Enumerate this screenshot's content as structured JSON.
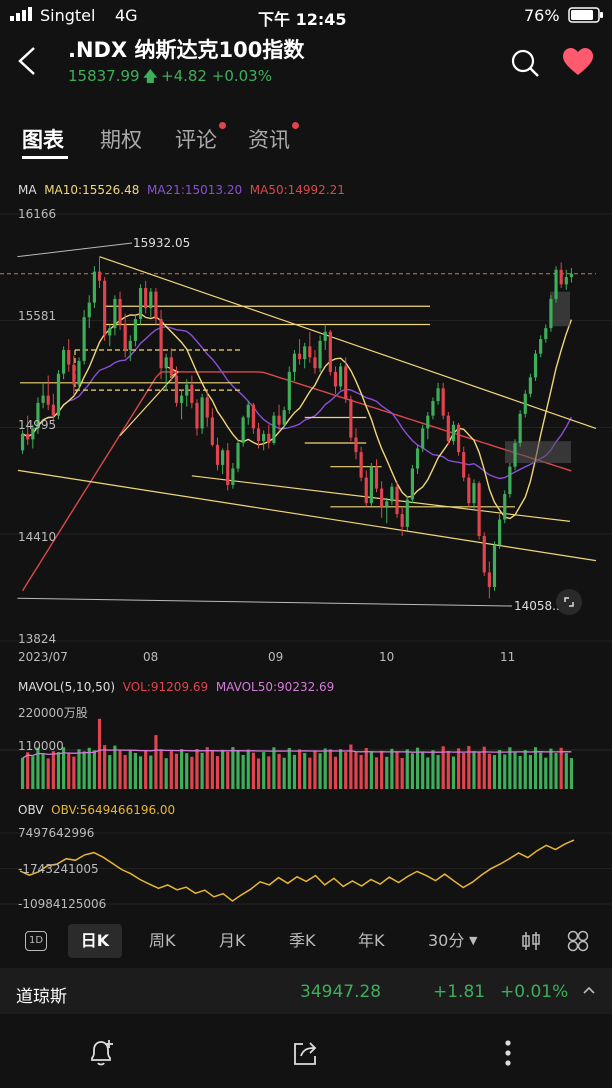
{
  "status": {
    "carrier": "Singtel",
    "network": "4G",
    "time": "下午 12:45",
    "battery": "76%"
  },
  "header": {
    "title": ".NDX 纳斯达克100指数",
    "price": "15837.99",
    "change": "+4.82",
    "change_pct": "+0.03%"
  },
  "tabs": [
    {
      "label": "图表"
    },
    {
      "label": "期权"
    },
    {
      "label": "评论"
    },
    {
      "label": "资讯"
    }
  ],
  "ma_legend": {
    "ma": "MA",
    "ma10": "MA10:15526.48",
    "ma21": "MA21:15013.20",
    "ma50": "MA50:14992.21"
  },
  "price_axis": {
    "y1": "16166",
    "y2": "15581",
    "y3": "14995",
    "y4": "14410",
    "y5": "13824"
  },
  "x_axis": {
    "d1": "2023/07",
    "d2": "08",
    "d3": "09",
    "d4": "10",
    "d5": "11"
  },
  "annotations": {
    "high": "15932.05",
    "low": "14058.33"
  },
  "mavol_legend": {
    "name": "MAVOL(5,10,50)",
    "vol": "VOL:91209.69",
    "mavol50": "MAVOL50:90232.69"
  },
  "vol_axis": {
    "y1": "220000万股",
    "y2": "110000"
  },
  "obv_legend": {
    "name": "OBV",
    "val": "OBV:5649466196.00"
  },
  "obv_axis": {
    "y1": "7497642996",
    "y2": "-1743241005",
    "y3": "-10984125006"
  },
  "timeframes": {
    "d1": "1D",
    "day": "日K",
    "week": "周K",
    "month": "月K",
    "quarter": "季K",
    "year": "年K",
    "min30": "30分"
  },
  "bottom_ticker": {
    "name": "道琼斯",
    "price": "34947.28",
    "change": "+1.81",
    "change_pct": "+0.01%"
  },
  "colors": {
    "up": "#3fae5a",
    "down": "#e0454f",
    "accent": "#f0d77a",
    "ma21": "#8a4fd6",
    "ma50": "#d9484a",
    "obv": "#e8b634",
    "bg": "#121212"
  },
  "chart_data": {
    "type": "candlestick",
    "x_labels": [
      "2023/07",
      "08",
      "09",
      "10",
      "11"
    ],
    "ylim": [
      13824,
      16166
    ],
    "y_ticks": [
      16166,
      15581,
      14995,
      14410,
      13824
    ],
    "annotated_high": 15932.05,
    "annotated_low": 14058.33,
    "last_price": 15837.99,
    "ohlc": [
      [
        14870,
        14980,
        14850,
        14960
      ],
      [
        14960,
        15060,
        14900,
        14930
      ],
      [
        14930,
        15010,
        14880,
        14990
      ],
      [
        14990,
        15160,
        14960,
        15130
      ],
      [
        15130,
        15240,
        15100,
        15170
      ],
      [
        15170,
        15280,
        15090,
        15120
      ],
      [
        15120,
        15180,
        15020,
        15060
      ],
      [
        15060,
        15310,
        15040,
        15290
      ],
      [
        15290,
        15440,
        15260,
        15420
      ],
      [
        15420,
        15480,
        15300,
        15340
      ],
      [
        15340,
        15390,
        15170,
        15230
      ],
      [
        15230,
        15380,
        15200,
        15360
      ],
      [
        15360,
        15640,
        15340,
        15600
      ],
      [
        15600,
        15720,
        15540,
        15680
      ],
      [
        15680,
        15880,
        15650,
        15850
      ],
      [
        15850,
        15932,
        15760,
        15800
      ],
      [
        15800,
        15820,
        15470,
        15500
      ],
      [
        15500,
        15560,
        15440,
        15540
      ],
      [
        15540,
        15720,
        15500,
        15700
      ],
      [
        15700,
        15740,
        15530,
        15560
      ],
      [
        15560,
        15620,
        15380,
        15420
      ],
      [
        15420,
        15500,
        15360,
        15470
      ],
      [
        15470,
        15610,
        15440,
        15590
      ],
      [
        15590,
        15780,
        15560,
        15760
      ],
      [
        15760,
        15800,
        15620,
        15650
      ],
      [
        15650,
        15760,
        15600,
        15740
      ],
      [
        15740,
        15760,
        15560,
        15590
      ],
      [
        15590,
        15640,
        15260,
        15320
      ],
      [
        15320,
        15400,
        15200,
        15380
      ],
      [
        15380,
        15430,
        15250,
        15280
      ],
      [
        15280,
        15330,
        15110,
        15130
      ],
      [
        15130,
        15200,
        15040,
        15170
      ],
      [
        15170,
        15260,
        15110,
        15230
      ],
      [
        15230,
        15280,
        15100,
        15130
      ],
      [
        15130,
        15150,
        14950,
        14990
      ],
      [
        14990,
        15180,
        14960,
        15160
      ],
      [
        15160,
        15200,
        15000,
        15050
      ],
      [
        15050,
        15100,
        14890,
        14900
      ],
      [
        14900,
        14940,
        14760,
        14790
      ],
      [
        14790,
        14880,
        14740,
        14870
      ],
      [
        14870,
        14910,
        14650,
        14680
      ],
      [
        14680,
        14800,
        14660,
        14770
      ],
      [
        14770,
        14930,
        14750,
        14910
      ],
      [
        14910,
        15060,
        14890,
        15050
      ],
      [
        15050,
        15140,
        15010,
        15120
      ],
      [
        15120,
        15130,
        14960,
        14990
      ],
      [
        14990,
        15020,
        14880,
        14920
      ],
      [
        14920,
        14980,
        14870,
        14960
      ],
      [
        14960,
        15010,
        14880,
        14910
      ],
      [
        14910,
        15080,
        14900,
        15060
      ],
      [
        15060,
        15120,
        14980,
        15010
      ],
      [
        15010,
        15110,
        14990,
        15090
      ],
      [
        15090,
        15330,
        15070,
        15300
      ],
      [
        15300,
        15420,
        15250,
        15400
      ],
      [
        15400,
        15480,
        15340,
        15370
      ],
      [
        15370,
        15460,
        15320,
        15440
      ],
      [
        15440,
        15520,
        15350,
        15380
      ],
      [
        15380,
        15420,
        15290,
        15320
      ],
      [
        15320,
        15500,
        15300,
        15470
      ],
      [
        15470,
        15560,
        15420,
        15520
      ],
      [
        15520,
        15530,
        15280,
        15300
      ],
      [
        15300,
        15330,
        15180,
        15220
      ],
      [
        15220,
        15350,
        15200,
        15330
      ],
      [
        15330,
        15380,
        15130,
        15150
      ],
      [
        15150,
        15170,
        14920,
        14940
      ],
      [
        14940,
        14990,
        14820,
        14860
      ],
      [
        14860,
        14890,
        14700,
        14720
      ],
      [
        14720,
        14760,
        14560,
        14580
      ],
      [
        14580,
        14800,
        14560,
        14780
      ],
      [
        14780,
        14820,
        14640,
        14660
      ],
      [
        14660,
        14700,
        14500,
        14560
      ],
      [
        14560,
        14610,
        14470,
        14590
      ],
      [
        14590,
        14690,
        14570,
        14670
      ],
      [
        14670,
        14700,
        14500,
        14520
      ],
      [
        14520,
        14560,
        14400,
        14450
      ],
      [
        14450,
        14620,
        14430,
        14600
      ],
      [
        14600,
        14790,
        14580,
        14770
      ],
      [
        14770,
        14900,
        14740,
        14880
      ],
      [
        14880,
        15010,
        14860,
        14990
      ],
      [
        14990,
        15080,
        14930,
        15060
      ],
      [
        15060,
        15160,
        15040,
        15140
      ],
      [
        15140,
        15240,
        15120,
        15210
      ],
      [
        15210,
        15240,
        15040,
        15060
      ],
      [
        15060,
        15080,
        14900,
        14920
      ],
      [
        14920,
        15030,
        14900,
        15010
      ],
      [
        15010,
        15020,
        14840,
        14860
      ],
      [
        14860,
        14890,
        14700,
        14720
      ],
      [
        14720,
        14740,
        14560,
        14580
      ],
      [
        14580,
        14710,
        14550,
        14690
      ],
      [
        14690,
        14700,
        14380,
        14400
      ],
      [
        14400,
        14420,
        14180,
        14200
      ],
      [
        14200,
        14260,
        14058,
        14120
      ],
      [
        14120,
        14370,
        14100,
        14350
      ],
      [
        14350,
        14520,
        14330,
        14490
      ],
      [
        14490,
        14650,
        14470,
        14630
      ],
      [
        14630,
        14800,
        14610,
        14780
      ],
      [
        14780,
        14930,
        14760,
        14910
      ],
      [
        14910,
        15090,
        14890,
        15070
      ],
      [
        15070,
        15200,
        15050,
        15180
      ],
      [
        15180,
        15290,
        15160,
        15270
      ],
      [
        15270,
        15420,
        15250,
        15400
      ],
      [
        15400,
        15500,
        15380,
        15480
      ],
      [
        15480,
        15560,
        15460,
        15540
      ],
      [
        15540,
        15720,
        15520,
        15700
      ],
      [
        15700,
        15880,
        15680,
        15860
      ],
      [
        15860,
        15900,
        15760,
        15780
      ],
      [
        15780,
        15860,
        15750,
        15820
      ],
      [
        15820,
        15870,
        15790,
        15838
      ]
    ],
    "series": [
      {
        "name": "MA10"
      },
      {
        "name": "MA21"
      },
      {
        "name": "MA50"
      }
    ],
    "volume_ylim": [
      0,
      220000
    ],
    "volume_ticks": [
      220000,
      110000
    ],
    "volume_last": 91209.69,
    "mavol50_last": 90232.69,
    "obv_ticks": [
      7497642996,
      -1743241005,
      -10984125006
    ],
    "obv_last": 5649466196.0,
    "obv_values": [
      -2400000000.0,
      -3500000000.0,
      -2600000000.0,
      -1000000000.0,
      -600000000.0,
      800000000.0,
      400000000.0,
      1800000000.0,
      2400000000.0,
      1200000000.0,
      -400000000.0,
      -2000000000.0,
      -3100000000.0,
      -4600000000.0,
      -5800000000.0,
      -6900000000.0,
      -6000000000.0,
      -7300000000.0,
      -6600000000.0,
      -8200000000.0,
      -7400000000.0,
      -9100000000.0,
      -8300000000.0,
      -10200000000.0,
      -8600000000.0,
      -7100000000.0,
      -5200000000.0,
      -6000000000.0,
      -4100000000.0,
      -5600000000.0,
      -3900000000.0,
      -5100000000.0,
      -3600000000.0,
      -6000000000.0,
      -4300000000.0,
      -6400000000.0,
      -5000000000.0,
      -6300000000.0,
      -4600000000.0,
      -5800000000.0,
      -4000000000.0,
      -5400000000.0,
      -3800000000.0,
      -2500000000.0,
      -3600000000.0,
      -4900000000.0,
      -3200000000.0,
      -5000000000.0,
      -6700000000.0,
      -5300000000.0,
      -3400000000.0,
      -1800000000.0,
      -600000000.0,
      800000000.0,
      2300000000.0,
      1100000000.0,
      2900000000.0,
      4300000000.0,
      3200000000.0,
      4600000000.0,
      5650000000.0
    ]
  }
}
